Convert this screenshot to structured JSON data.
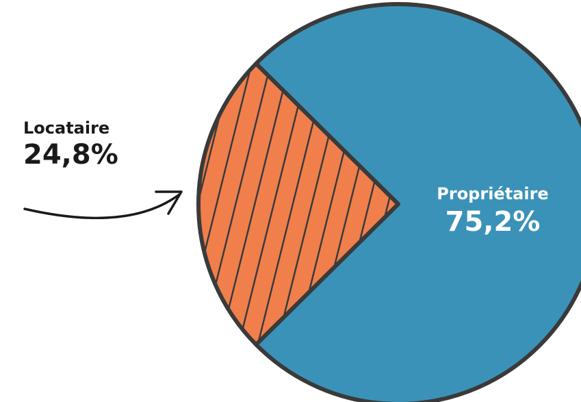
{
  "chart_data": {
    "type": "pie",
    "title": "",
    "slices": [
      {
        "label": "Propriétaire",
        "value": 75.2,
        "value_label": "75,2%",
        "color": "#3b92b8"
      },
      {
        "label": "Locataire",
        "value": 24.8,
        "value_label": "24,8%",
        "color": "#f07f4c",
        "pattern": "diagonal-hatch"
      }
    ],
    "outline_color": "#3a3a3a"
  }
}
